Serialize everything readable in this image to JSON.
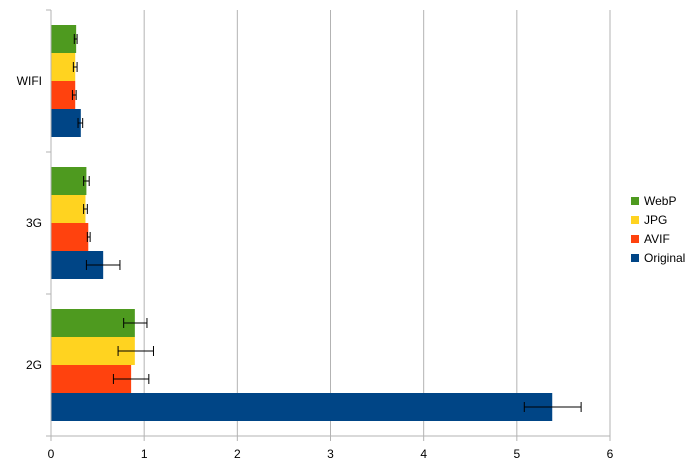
{
  "chart_data": {
    "type": "bar",
    "orientation": "horizontal",
    "title": "",
    "xlabel": "",
    "ylabel": "",
    "xlim": [
      0,
      6
    ],
    "x_ticks": [
      "0",
      "1",
      "2",
      "3",
      "4",
      "5",
      "6"
    ],
    "categories": [
      "WIFI",
      "3G",
      "2G"
    ],
    "series": [
      {
        "name": "WebP",
        "color": "#4e9a1f",
        "values": [
          0.27,
          0.38,
          0.9
        ],
        "error_low": [
          0.25,
          0.35,
          0.78
        ],
        "error_high": [
          0.28,
          0.41,
          1.03
        ]
      },
      {
        "name": "JPG",
        "color": "#ffd320",
        "values": [
          0.26,
          0.37,
          0.9
        ],
        "error_low": [
          0.24,
          0.35,
          0.72
        ],
        "error_high": [
          0.28,
          0.39,
          1.1
        ]
      },
      {
        "name": "AVIF",
        "color": "#ff420e",
        "values": [
          0.26,
          0.4,
          0.86
        ],
        "error_low": [
          0.23,
          0.39,
          0.67
        ],
        "error_high": [
          0.27,
          0.42,
          1.05
        ]
      },
      {
        "name": "Original",
        "color": "#004586",
        "values": [
          0.32,
          0.56,
          5.38
        ],
        "error_low": [
          0.29,
          0.38,
          5.08
        ],
        "error_high": [
          0.34,
          0.74,
          5.69
        ]
      }
    ],
    "grid": "vertical",
    "legend_position": "right"
  }
}
